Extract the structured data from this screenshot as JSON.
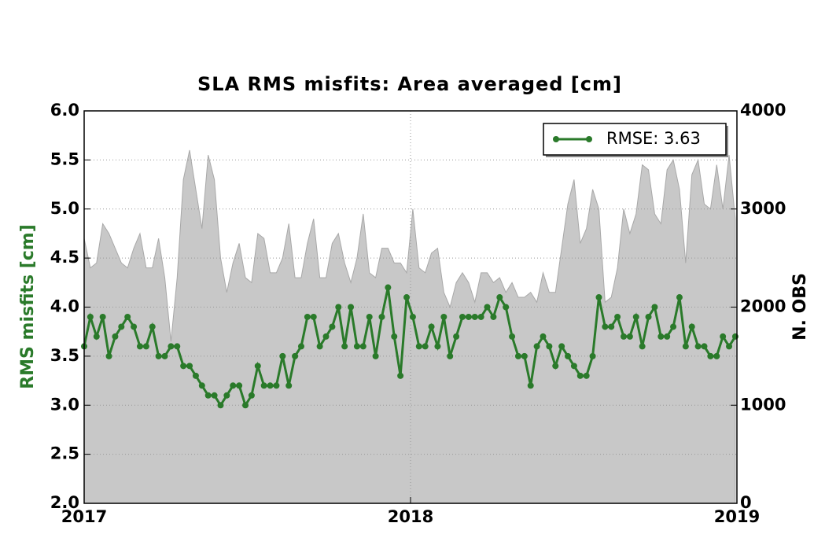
{
  "chart_data": {
    "type": "line",
    "title": "SLA RMS misfits: Area averaged [cm]",
    "ylabel": "RMS misfits [cm]",
    "y2label": "N. OBS",
    "xlim": [
      2017,
      2019
    ],
    "xticks": [
      2017,
      2018,
      2019
    ],
    "ylim": [
      2,
      6
    ],
    "yticks": [
      {
        "value": 2,
        "label": "2.0"
      },
      {
        "value": 2.5,
        "label": "2.5"
      },
      {
        "value": 3,
        "label": "3.0"
      },
      {
        "value": 3.5,
        "label": "3.5"
      },
      {
        "value": 4,
        "label": "4.0"
      },
      {
        "value": 4.5,
        "label": "4.5"
      },
      {
        "value": 5,
        "label": "5.0"
      },
      {
        "value": 5.5,
        "label": "5.5"
      },
      {
        "value": 6,
        "label": "6.0"
      }
    ],
    "y2lim": [
      0,
      4000
    ],
    "y2ticks": [
      0,
      1000,
      2000,
      3000,
      4000
    ],
    "grid": true,
    "legend": "upper right",
    "x": [
      2017,
      2017.019,
      2017.038,
      2017.057,
      2017.076,
      2017.095,
      2017.114,
      2017.133,
      2017.152,
      2017.171,
      2017.19,
      2017.209,
      2017.228,
      2017.247,
      2017.266,
      2017.285,
      2017.304,
      2017.323,
      2017.342,
      2017.361,
      2017.38,
      2017.399,
      2017.418,
      2017.437,
      2017.456,
      2017.475,
      2017.494,
      2017.513,
      2017.532,
      2017.551,
      2017.57,
      2017.589,
      2017.608,
      2017.627,
      2017.646,
      2017.665,
      2017.684,
      2017.703,
      2017.722,
      2017.741,
      2017.76,
      2017.779,
      2017.798,
      2017.817,
      2017.836,
      2017.855,
      2017.874,
      2017.893,
      2017.912,
      2017.931,
      2017.95,
      2017.969,
      2017.988,
      2018.007,
      2018.026,
      2018.045,
      2018.064,
      2018.083,
      2018.102,
      2018.121,
      2018.14,
      2018.159,
      2018.178,
      2018.197,
      2018.216,
      2018.235,
      2018.254,
      2018.273,
      2018.292,
      2018.311,
      2018.33,
      2018.349,
      2018.368,
      2018.387,
      2018.406,
      2018.425,
      2018.444,
      2018.463,
      2018.482,
      2018.501,
      2018.52,
      2018.539,
      2018.558,
      2018.577,
      2018.596,
      2018.615,
      2018.634,
      2018.653,
      2018.672,
      2018.691,
      2018.71,
      2018.729,
      2018.748,
      2018.767,
      2018.786,
      2018.805,
      2018.824,
      2018.843,
      2018.862,
      2018.881,
      2018.9,
      2018.919,
      2018.938,
      2018.957,
      2018.976,
      2018.995
    ],
    "series": [
      {
        "name": "RMSE: 3.63",
        "color": "#2a7a2a",
        "type": "line",
        "values": [
          3.6,
          3.9,
          3.7,
          3.9,
          3.5,
          3.7,
          3.8,
          3.9,
          3.8,
          3.6,
          3.6,
          3.8,
          3.5,
          3.5,
          3.6,
          3.6,
          3.4,
          3.4,
          3.3,
          3.2,
          3.1,
          3.1,
          3.0,
          3.1,
          3.2,
          3.2,
          3.0,
          3.1,
          3.4,
          3.2,
          3.2,
          3.2,
          3.5,
          3.2,
          3.5,
          3.6,
          3.9,
          3.9,
          3.6,
          3.7,
          3.8,
          4.0,
          3.6,
          4.0,
          3.6,
          3.6,
          3.9,
          3.5,
          3.9,
          4.2,
          3.7,
          3.3,
          4.1,
          3.9,
          3.6,
          3.6,
          3.8,
          3.6,
          3.9,
          3.5,
          3.7,
          3.9,
          3.9,
          3.9,
          3.9,
          4.0,
          3.9,
          4.1,
          4.0,
          3.7,
          3.5,
          3.5,
          3.2,
          3.6,
          3.7,
          3.6,
          3.4,
          3.6,
          3.5,
          3.4,
          3.3,
          3.3,
          3.5,
          4.1,
          3.8,
          3.8,
          3.9,
          3.7,
          3.7,
          3.9,
          3.6,
          3.9,
          4.0,
          3.7,
          3.7,
          3.8,
          4.1,
          3.6,
          3.8,
          3.6,
          3.6,
          3.5,
          3.5,
          3.7,
          3.6,
          3.7
        ]
      },
      {
        "color": "#c8c8c8",
        "type": "area",
        "axis": "y2",
        "values": [
          2700,
          2400,
          2450,
          2850,
          2750,
          2600,
          2450,
          2400,
          2600,
          2750,
          2400,
          2400,
          2700,
          2300,
          1650,
          2300,
          3300,
          3600,
          3200,
          2800,
          3550,
          3300,
          2500,
          2150,
          2450,
          2650,
          2300,
          2250,
          2750,
          2700,
          2350,
          2350,
          2500,
          2850,
          2300,
          2300,
          2650,
          2900,
          2300,
          2300,
          2650,
          2750,
          2450,
          2250,
          2500,
          2950,
          2350,
          2300,
          2600,
          2600,
          2450,
          2450,
          2350,
          3000,
          2400,
          2350,
          2550,
          2600,
          2150,
          2000,
          2250,
          2350,
          2250,
          2050,
          2350,
          2350,
          2250,
          2300,
          2150,
          2250,
          2100,
          2100,
          2150,
          2050,
          2350,
          2150,
          2150,
          2600,
          3050,
          3300,
          2650,
          2800,
          3200,
          3000,
          2050,
          2100,
          2400,
          3000,
          2750,
          2950,
          3450,
          3400,
          2950,
          2850,
          3400,
          3500,
          3200,
          2450,
          3350,
          3500,
          3050,
          3000,
          3450,
          3000,
          3550,
          2900
        ]
      }
    ]
  }
}
